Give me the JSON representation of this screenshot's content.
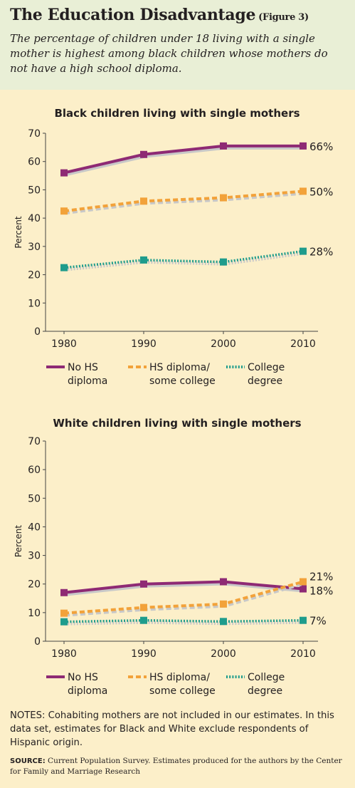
{
  "header": {
    "title": "The Education Disadvantage",
    "figure_label": "(Figure 3)",
    "subtitle": "The percentage of children under 18 living with a single mother is highest among black children whose mothers do not have a high school diploma."
  },
  "colors": {
    "no_hs": "#8e2a74",
    "hs_some_college": "#f2a23a",
    "college": "#1f9c8c",
    "shadow": "#c8c8c8",
    "header_bg": "#e9efd6",
    "page_bg": "#fcefc9"
  },
  "chart_data": [
    {
      "type": "line",
      "title": "Black children living with single mothers",
      "ylabel": "Percent",
      "xlabel": "",
      "ylim": [
        0,
        70
      ],
      "yticks": [
        "0",
        "10",
        "20",
        "30",
        "40",
        "50",
        "60",
        "70"
      ],
      "x": [
        "1980",
        "1990",
        "2000",
        "2010"
      ],
      "series": [
        {
          "name": "No HS diploma",
          "legend_lines": [
            "No HS",
            "diploma"
          ],
          "style": "solid",
          "color_key": "no_hs",
          "values": [
            56,
            62.5,
            65.5,
            65.5
          ],
          "end_label": "66%"
        },
        {
          "name": "HS diploma/ some college",
          "legend_lines": [
            "HS diploma/",
            "some college"
          ],
          "style": "dashed",
          "color_key": "hs_some_college",
          "values": [
            42.5,
            46,
            47.2,
            49.5
          ],
          "end_label": "50%"
        },
        {
          "name": "College degree",
          "legend_lines": [
            "College",
            "degree"
          ],
          "style": "dotted",
          "color_key": "college",
          "values": [
            22.5,
            25.2,
            24.5,
            28.3
          ],
          "end_label": "28%"
        }
      ],
      "legend_position": "bottom",
      "grid": false
    },
    {
      "type": "line",
      "title": "White children living with single mothers",
      "ylabel": "Percent",
      "xlabel": "",
      "ylim": [
        0,
        70
      ],
      "yticks": [
        "0",
        "10",
        "20",
        "30",
        "40",
        "50",
        "60",
        "70"
      ],
      "x": [
        "1980",
        "1990",
        "2000",
        "2010"
      ],
      "series": [
        {
          "name": "No HS diploma",
          "legend_lines": [
            "No HS",
            "diploma"
          ],
          "style": "solid",
          "color_key": "no_hs",
          "values": [
            17,
            20,
            20.8,
            18.3
          ],
          "end_label": "18%"
        },
        {
          "name": "HS diploma/ some college",
          "legend_lines": [
            "HS diploma/",
            "some college"
          ],
          "style": "dashed",
          "color_key": "hs_some_college",
          "values": [
            9.8,
            11.8,
            13,
            20.8
          ],
          "end_label": "21%"
        },
        {
          "name": "College degree",
          "legend_lines": [
            "College",
            "degree"
          ],
          "style": "dotted",
          "color_key": "college",
          "values": [
            6.8,
            7.3,
            6.9,
            7.3
          ],
          "end_label": "7%"
        }
      ],
      "legend_position": "bottom",
      "grid": false
    }
  ],
  "notes": "NOTES: Cohabiting mothers are not included in our estimates. In this data set, estimates for Black and White exclude respondents of Hispanic origin.",
  "source": {
    "label": "SOURCE:",
    "text": "Current Population Survey. Estimates produced for the authors by the Center for Family and Marriage Research"
  }
}
